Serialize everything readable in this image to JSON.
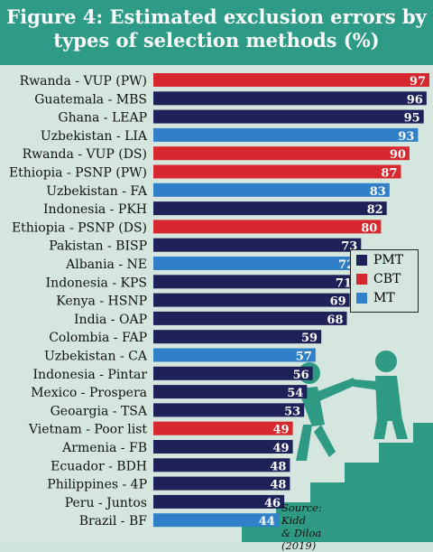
{
  "header": {
    "title_line1": "Figure 4: Estimated exclusion errors by",
    "title_line2": "types of selection methods (%)"
  },
  "colors": {
    "PMT": "#1f2159",
    "CBT": "#d7282f",
    "MT": "#2f80c9",
    "header_bg": "#2d9b86",
    "stairs": "#2e9a83"
  },
  "legend": [
    {
      "key": "PMT",
      "label": "PMT"
    },
    {
      "key": "CBT",
      "label": "CBT"
    },
    {
      "key": "MT",
      "label": "MT"
    }
  ],
  "source": {
    "line1": "Source: Kidd",
    "line2": "& Diloa (2019)"
  },
  "chart_data": {
    "type": "bar",
    "orientation": "horizontal",
    "title": "Figure 4: Estimated exclusion errors by types of selection methods (%)",
    "xlim": [
      0,
      97
    ],
    "grid": false,
    "legend_placement": "right",
    "categories": [
      "Rwanda - VUP (PW)",
      "Guatemala - MBS",
      "Ghana - LEAP",
      "Uzbekistan - LIA",
      "Rwanda - VUP (DS)",
      "Ethiopia - PSNP (PW)",
      "Uzbekistan - FA",
      "Indonesia - PKH",
      "Ethiopia - PSNP (DS)",
      "Pakistan - BISP",
      "Albania - NE",
      "Indonesia - KPS",
      "Kenya - HSNP",
      "India - OAP",
      "Colombia - FAP",
      "Uzbekistan - CA",
      "Indonesia - Pintar",
      "Mexico - Prospera",
      "Geoargia - TSA",
      "Vietnam - Poor list",
      "Armenia - FB",
      "Ecuador - BDH",
      "Philippines - 4P",
      "Peru - Juntos",
      "Brazil - BF"
    ],
    "values": [
      97,
      96,
      95,
      93,
      90,
      87,
      83,
      82,
      80,
      73,
      72,
      71,
      69,
      68,
      59,
      57,
      56,
      54,
      53,
      49,
      49,
      48,
      48,
      46,
      44
    ],
    "types": [
      "CBT",
      "PMT",
      "PMT",
      "MT",
      "CBT",
      "CBT",
      "MT",
      "PMT",
      "CBT",
      "PMT",
      "MT",
      "PMT",
      "PMT",
      "PMT",
      "PMT",
      "MT",
      "PMT",
      "PMT",
      "PMT",
      "CBT",
      "PMT",
      "PMT",
      "PMT",
      "PMT",
      "MT"
    ]
  }
}
